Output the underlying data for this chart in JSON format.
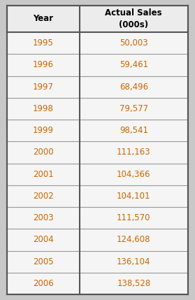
{
  "col_headers": [
    "Year",
    "Actual Sales\n(000s)"
  ],
  "rows": [
    [
      "1995",
      "50,003"
    ],
    [
      "1996",
      "59,461"
    ],
    [
      "1997",
      "68,496"
    ],
    [
      "1998",
      "79,577"
    ],
    [
      "1999",
      "98,541"
    ],
    [
      "2000",
      "111,163"
    ],
    [
      "2001",
      "104,366"
    ],
    [
      "2002",
      "104,101"
    ],
    [
      "2003",
      "111,570"
    ],
    [
      "2004",
      "124,608"
    ],
    [
      "2005",
      "136,104"
    ],
    [
      "2006",
      "138,528"
    ]
  ],
  "header_bg": "#ececec",
  "cell_bg": "#f5f5f5",
  "border_color": "#999999",
  "border_color_dark": "#555555",
  "text_color": "#cc6600",
  "header_text_color": "#000000",
  "outer_bg": "#c8c8c8",
  "fig_width": 2.79,
  "fig_height": 4.29,
  "dpi": 100
}
